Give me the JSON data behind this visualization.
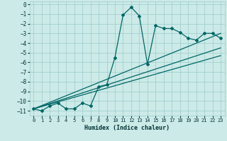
{
  "xlabel": "Humidex (Indice chaleur)",
  "xlim": [
    -0.5,
    23.5
  ],
  "ylim": [
    -11.5,
    0.3
  ],
  "xticks": [
    0,
    1,
    2,
    3,
    4,
    5,
    6,
    7,
    8,
    9,
    10,
    11,
    12,
    13,
    14,
    15,
    16,
    17,
    18,
    19,
    20,
    21,
    22,
    23
  ],
  "yticks": [
    0,
    -1,
    -2,
    -3,
    -4,
    -5,
    -6,
    -7,
    -8,
    -9,
    -10,
    -11
  ],
  "bg_color": "#cceae7",
  "grid_color": "#99cccc",
  "line_color": "#006666",
  "data_x": [
    0,
    1,
    2,
    3,
    4,
    5,
    6,
    7,
    8,
    9,
    10,
    11,
    12,
    13,
    14,
    15,
    16,
    17,
    18,
    19,
    20,
    21,
    22,
    23
  ],
  "data_y": [
    -10.8,
    -11.0,
    -10.5,
    -10.2,
    -10.8,
    -10.8,
    -10.2,
    -10.5,
    -8.5,
    -8.3,
    -5.5,
    -1.1,
    -0.3,
    -1.2,
    -6.2,
    -2.2,
    -2.5,
    -2.5,
    -2.9,
    -3.5,
    -3.7,
    -3.0,
    -3.0,
    -3.5
  ],
  "line1_x": [
    0,
    23
  ],
  "line1_y": [
    -10.8,
    -3.0
  ],
  "line2_x": [
    0,
    23
  ],
  "line2_y": [
    -10.8,
    -4.5
  ],
  "line3_x": [
    0,
    23
  ],
  "line3_y": [
    -10.8,
    -5.3
  ]
}
